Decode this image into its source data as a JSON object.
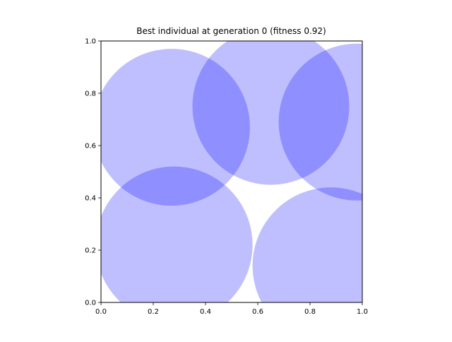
{
  "chart_data": {
    "type": "scatter",
    "title": "Best individual at generation 0 (fitness 0.92)",
    "xlabel": "",
    "ylabel": "",
    "xlim": [
      0.0,
      1.0
    ],
    "ylim": [
      0.0,
      1.0
    ],
    "grid": false,
    "x_ticks": [
      "0.0",
      "0.2",
      "0.4",
      "0.6",
      "0.8",
      "1.0"
    ],
    "y_ticks": [
      "0.0",
      "0.2",
      "0.4",
      "0.6",
      "0.8",
      "1.0"
    ],
    "circle_color": "#0000ff",
    "circle_alpha": 0.25,
    "circles": [
      {
        "x": 0.27,
        "y": 0.67,
        "r": 0.3
      },
      {
        "x": 0.65,
        "y": 0.75,
        "r": 0.3
      },
      {
        "x": 0.98,
        "y": 0.69,
        "r": 0.3
      },
      {
        "x": 0.28,
        "y": 0.22,
        "r": 0.3
      },
      {
        "x": 0.88,
        "y": 0.14,
        "r": 0.3
      }
    ]
  }
}
